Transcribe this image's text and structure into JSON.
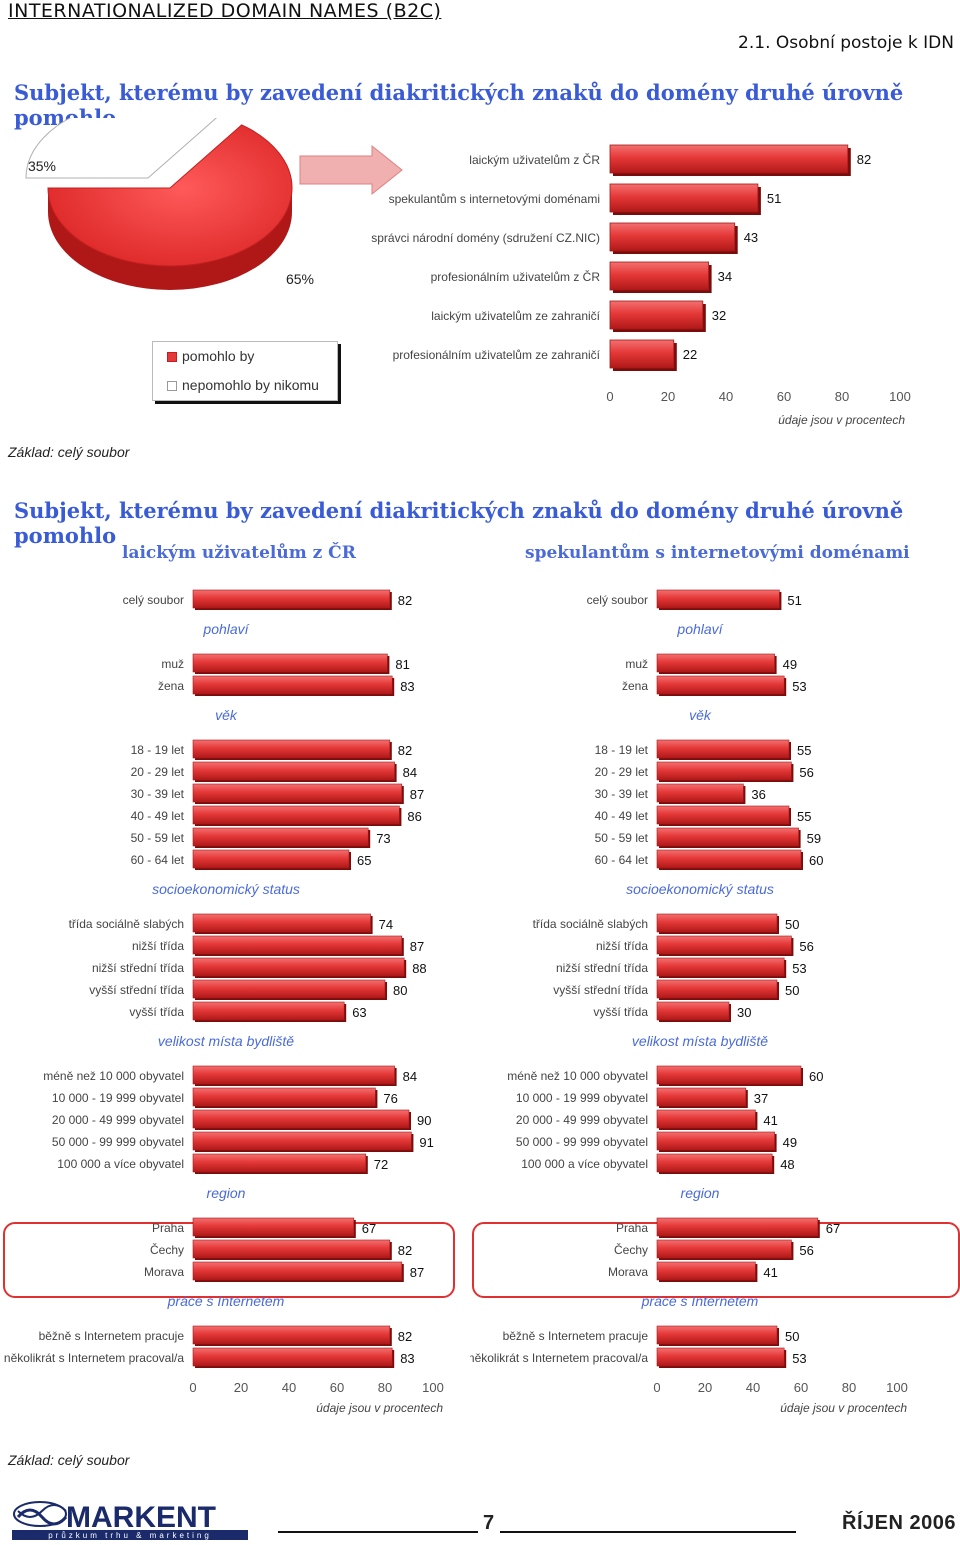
{
  "header": {
    "title": "INTERNATIONALIZED DOMAIN NAMES (B2C)",
    "section": "2.1. Osobní postoje k IDN"
  },
  "top_section": {
    "title": "Subjekt, kterému by zavedení diakritických znaků do domény druhé úrovně pomohlo",
    "basis": "Základ: celý soubor",
    "unit_note": "údaje jsou v procentech",
    "legend": [
      {
        "label": "pomohlo by",
        "color": "#e53838"
      },
      {
        "label": "nepomohlo by nikomu",
        "color": "#ffffff"
      }
    ]
  },
  "bottom_section": {
    "title": "Subjekt, kterému by zavedení diakritických znaků do domény druhé úrovně pomohlo",
    "basis": "Základ: celý soubor",
    "left_title": "laickým uživatelům z ČR",
    "right_title": "spekulantům s internetovými doménami",
    "unit_note": "údaje jsou v procentech"
  },
  "footer": {
    "logo_text": "MARKENT",
    "logo_tagline": "průzkum trhu & marketing",
    "page_number": "7",
    "date": "ŘÍJEN 2006"
  },
  "colors": {
    "bar": "#e53838",
    "bar_dark": "#b01818",
    "heading": "#3a5bd6",
    "subgroup": "#4a6ad8"
  },
  "chart_data": [
    {
      "type": "pie",
      "labels": [
        "pomohlo by",
        "nepomohlo by nikomu"
      ],
      "values": [
        65,
        35
      ],
      "value_labels": [
        "65%",
        "35%"
      ]
    },
    {
      "type": "bar",
      "orientation": "horizontal",
      "categories": [
        "laickým uživatelům z ČR",
        "spekulantům s internetovými doménami",
        "správci národní domény (sdružení CZ.NIC)",
        "profesionálním uživatelům z ČR",
        "laickým uživatelům ze zahraničí",
        "profesionálním uživatelům ze zahraničí"
      ],
      "values": [
        82,
        51,
        43,
        34,
        32,
        22
      ],
      "xlim": [
        0,
        100
      ],
      "ticks": [
        0,
        20,
        40,
        60,
        80,
        100
      ]
    },
    {
      "type": "bar",
      "orientation": "horizontal",
      "ticks": [
        0,
        20,
        40,
        60,
        80,
        100
      ],
      "xlim": [
        0,
        100
      ],
      "groups": [
        {
          "title": "",
          "rows": [
            {
              "label": "celý soubor",
              "value": 82
            }
          ]
        },
        {
          "title": "pohlaví",
          "rows": [
            {
              "label": "muž",
              "value": 81
            },
            {
              "label": "žena",
              "value": 83
            }
          ]
        },
        {
          "title": "věk",
          "rows": [
            {
              "label": "18 - 19 let",
              "value": 82
            },
            {
              "label": "20 - 29 let",
              "value": 84
            },
            {
              "label": "30 - 39 let",
              "value": 87
            },
            {
              "label": "40 - 49 let",
              "value": 86
            },
            {
              "label": "50 - 59 let",
              "value": 73
            },
            {
              "label": "60 - 64 let",
              "value": 65
            }
          ]
        },
        {
          "title": "socioekonomický status",
          "rows": [
            {
              "label": "třída sociálně slabých",
              "value": 74
            },
            {
              "label": "nižší třída",
              "value": 87
            },
            {
              "label": "nižší střední třída",
              "value": 88
            },
            {
              "label": "vyšší střední třída",
              "value": 80
            },
            {
              "label": "vyšší třída",
              "value": 63
            }
          ]
        },
        {
          "title": "velikost místa bydliště",
          "rows": [
            {
              "label": "méně než 10 000 obyvatel",
              "value": 84
            },
            {
              "label": "10 000 - 19 999 obyvatel",
              "value": 76
            },
            {
              "label": "20 000 - 49 999 obyvatel",
              "value": 90
            },
            {
              "label": "50 000 - 99 999 obyvatel",
              "value": 91
            },
            {
              "label": "100 000 a více obyvatel",
              "value": 72
            }
          ]
        },
        {
          "title": "region",
          "rows": [
            {
              "label": "Praha",
              "value": 67
            },
            {
              "label": "Čechy",
              "value": 82
            },
            {
              "label": "Morava",
              "value": 87
            }
          ]
        },
        {
          "title": "práce s Internetem",
          "rows": [
            {
              "label": "běžně s Internetem pracuje",
              "value": 82
            },
            {
              "label": "několikrát s Internetem pracoval/a",
              "value": 83
            }
          ]
        }
      ]
    },
    {
      "type": "bar",
      "orientation": "horizontal",
      "ticks": [
        0,
        20,
        40,
        60,
        80,
        100
      ],
      "xlim": [
        0,
        100
      ],
      "groups": [
        {
          "title": "",
          "rows": [
            {
              "label": "celý soubor",
              "value": 51
            }
          ]
        },
        {
          "title": "pohlaví",
          "rows": [
            {
              "label": "muž",
              "value": 49
            },
            {
              "label": "žena",
              "value": 53
            }
          ]
        },
        {
          "title": "věk",
          "rows": [
            {
              "label": "18 - 19 let",
              "value": 55
            },
            {
              "label": "20 - 29 let",
              "value": 56
            },
            {
              "label": "30 - 39 let",
              "value": 36
            },
            {
              "label": "40 - 49 let",
              "value": 55
            },
            {
              "label": "50 - 59 let",
              "value": 59
            },
            {
              "label": "60 - 64 let",
              "value": 60
            }
          ]
        },
        {
          "title": "socioekonomický status",
          "rows": [
            {
              "label": "třída sociálně slabých",
              "value": 50
            },
            {
              "label": "nižší třída",
              "value": 56
            },
            {
              "label": "nižší střední třída",
              "value": 53
            },
            {
              "label": "vyšší střední třída",
              "value": 50
            },
            {
              "label": "vyšší třída",
              "value": 30
            }
          ]
        },
        {
          "title": "velikost místa bydliště",
          "rows": [
            {
              "label": "méně než 10 000 obyvatel",
              "value": 60
            },
            {
              "label": "10 000 - 19 999 obyvatel",
              "value": 37
            },
            {
              "label": "20 000 - 49 999 obyvatel",
              "value": 41
            },
            {
              "label": "50 000 - 99 999 obyvatel",
              "value": 49
            },
            {
              "label": "100 000 a více obyvatel",
              "value": 48
            }
          ]
        },
        {
          "title": "region",
          "rows": [
            {
              "label": "Praha",
              "value": 67
            },
            {
              "label": "Čechy",
              "value": 56
            },
            {
              "label": "Morava",
              "value": 41
            }
          ]
        },
        {
          "title": "práce s Internetem",
          "rows": [
            {
              "label": "běžně s Internetem pracuje",
              "value": 50
            },
            {
              "label": "několikrát s Internetem pracoval/a",
              "value": 53
            }
          ]
        }
      ]
    }
  ]
}
